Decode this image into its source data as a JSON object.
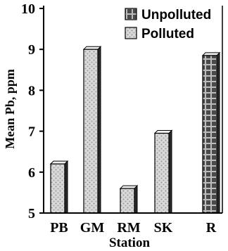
{
  "chart_data": {
    "type": "bar",
    "categories": [
      "PB",
      "GM",
      "RM",
      "SK",
      "R"
    ],
    "series": [
      {
        "name": "Unpolluted",
        "values": [
          null,
          null,
          null,
          null,
          8.85
        ],
        "color": "#444444"
      },
      {
        "name": "Polluted",
        "values": [
          6.2,
          9.0,
          5.6,
          6.95,
          null
        ],
        "color": "#d4d4d4"
      }
    ],
    "xlabel": "Station",
    "ylabel": "Mean Pb, ppm",
    "ylim": [
      5,
      10
    ],
    "yticks": [
      5,
      6,
      7,
      8,
      9,
      10
    ],
    "grid": false,
    "legend_position": "top-right"
  }
}
